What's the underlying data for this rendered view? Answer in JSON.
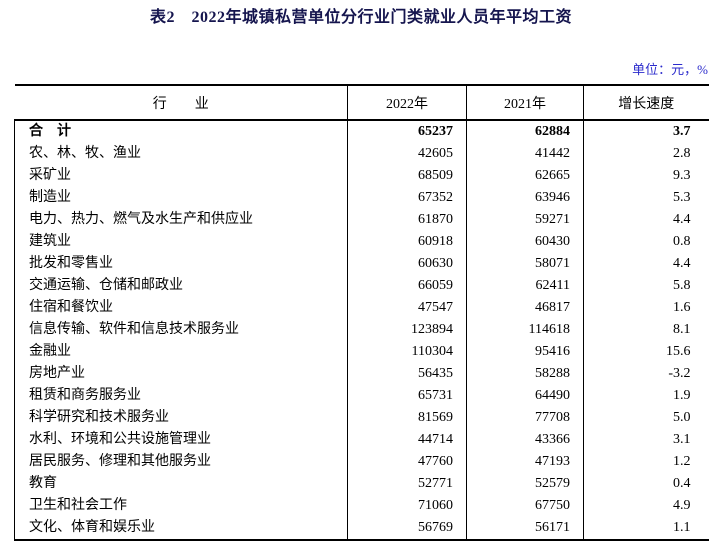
{
  "page": {
    "title": "表2　2022年城镇私营单位分行业门类就业人员年平均工资",
    "unit_label": "单位：元，%"
  },
  "colors": {
    "title_text": "#15154e",
    "unit_text": "#2b2bcc",
    "table_border": "#000000",
    "body_text": "#000000",
    "background": "#ffffff"
  },
  "table": {
    "headers": [
      "行　　业",
      "2022年",
      "2021年",
      "增长速度"
    ],
    "rows": [
      [
        "合　计",
        "65237",
        "62884",
        "3.7"
      ],
      [
        "农、林、牧、渔业",
        "42605",
        "41442",
        "2.8"
      ],
      [
        "采矿业",
        "68509",
        "62665",
        "9.3"
      ],
      [
        "制造业",
        "67352",
        "63946",
        "5.3"
      ],
      [
        "电力、热力、燃气及水生产和供应业",
        "61870",
        "59271",
        "4.4"
      ],
      [
        "建筑业",
        "60918",
        "60430",
        "0.8"
      ],
      [
        "批发和零售业",
        "60630",
        "58071",
        "4.4"
      ],
      [
        "交通运输、仓储和邮政业",
        "66059",
        "62411",
        "5.8"
      ],
      [
        "住宿和餐饮业",
        "47547",
        "46817",
        "1.6"
      ],
      [
        "信息传输、软件和信息技术服务业",
        "123894",
        "114618",
        "8.1"
      ],
      [
        "金融业",
        "110304",
        "95416",
        "15.6"
      ],
      [
        "房地产业",
        "56435",
        "58288",
        "-3.2"
      ],
      [
        "租赁和商务服务业",
        "65731",
        "64490",
        "1.9"
      ],
      [
        "科学研究和技术服务业",
        "81569",
        "77708",
        "5.0"
      ],
      [
        "水利、环境和公共设施管理业",
        "44714",
        "43366",
        "3.1"
      ],
      [
        "居民服务、修理和其他服务业",
        "47760",
        "47193",
        "1.2"
      ],
      [
        "教育",
        "52771",
        "52579",
        "0.4"
      ],
      [
        "卫生和社会工作",
        "71060",
        "67750",
        "4.9"
      ],
      [
        "文化、体育和娱乐业",
        "56769",
        "56171",
        "1.1"
      ]
    ]
  }
}
